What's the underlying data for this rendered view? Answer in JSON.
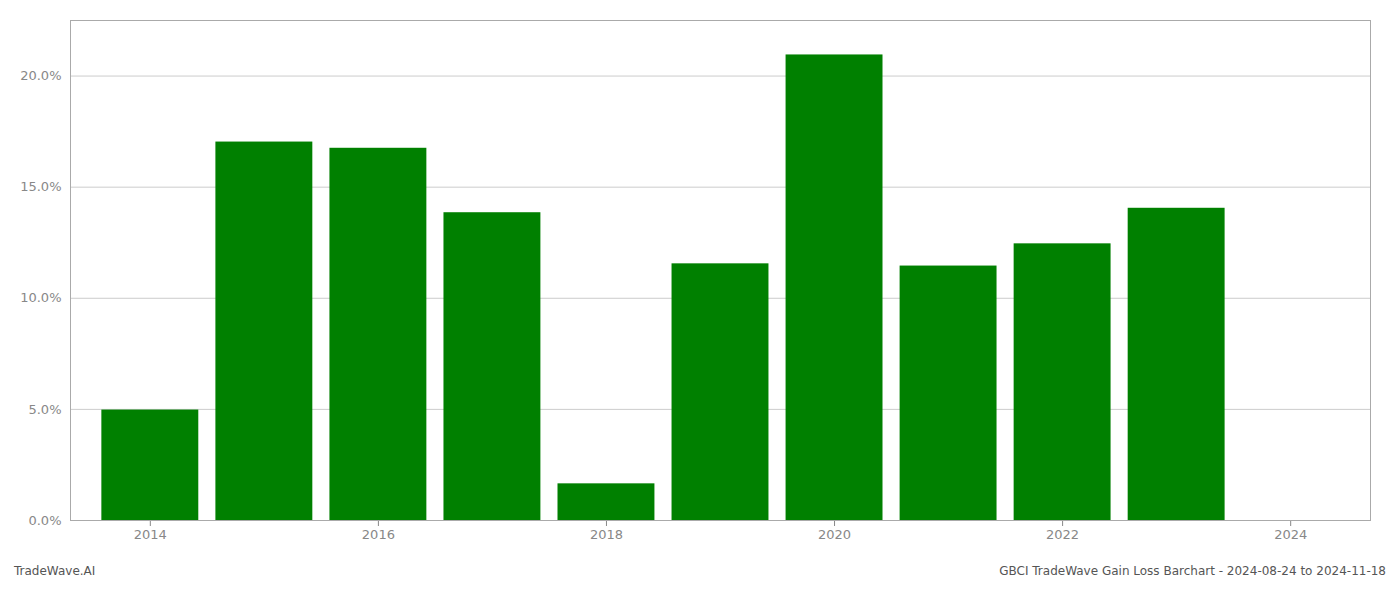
{
  "chart_data": {
    "type": "bar",
    "x": [
      2014,
      2015,
      2016,
      2017,
      2018,
      2019,
      2020,
      2021,
      2022,
      2023
    ],
    "values": [
      0.0497,
      0.1703,
      0.1675,
      0.1385,
      0.0165,
      0.1155,
      0.2095,
      0.1145,
      0.1245,
      0.1405
    ],
    "color": "#008000",
    "xlim": [
      2013.3,
      2024.7
    ],
    "xticks": [
      2014,
      2016,
      2018,
      2020,
      2022,
      2024
    ],
    "ylim": [
      0,
      0.225
    ],
    "yticks": [
      {
        "value": 0.0,
        "label": "0.0%"
      },
      {
        "value": 0.05,
        "label": "5.0%"
      },
      {
        "value": 0.1,
        "label": "10.0%"
      },
      {
        "value": 0.15,
        "label": "15.0%"
      },
      {
        "value": 0.2,
        "label": "20.0%"
      }
    ],
    "grid": true,
    "annotations": [
      "TradeWave.AI",
      "GBCI TradeWave Gain Loss Barchart - 2024-08-24 to 2024-11-18"
    ]
  }
}
